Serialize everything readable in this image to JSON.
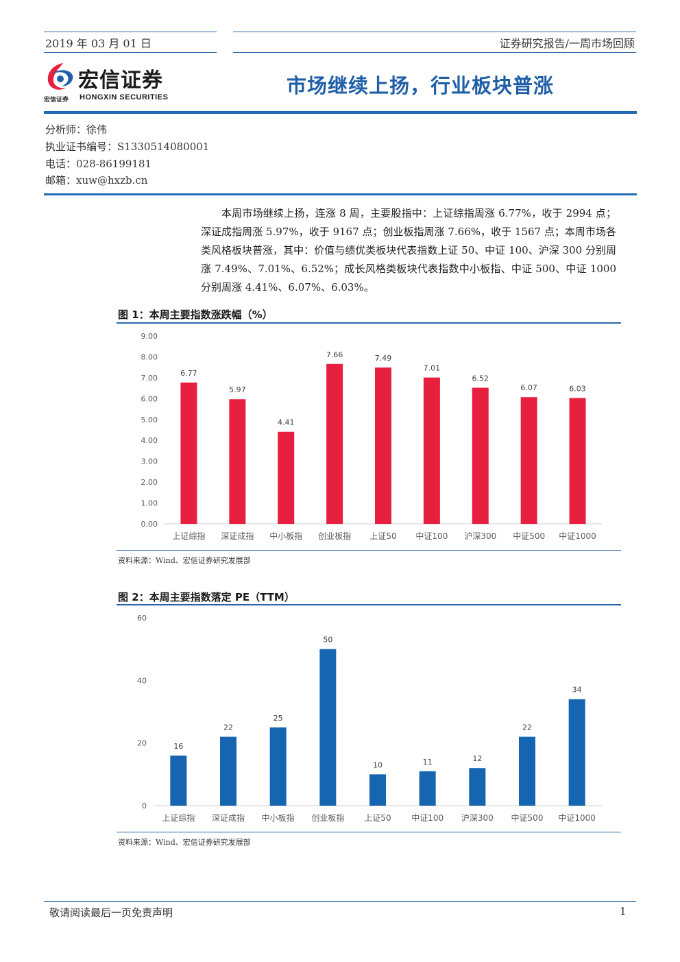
{
  "header": {
    "date": "2019 年 03 月 01 日",
    "report_type": "证券研究报告/一周市场回顾"
  },
  "logo": {
    "cn_name": "宏信证券",
    "small_cn": "宏信证券",
    "en_name": "HONGXIN SECURITIES"
  },
  "main_title": "市场继续上扬，行业板块普涨",
  "analyst": {
    "name_line": "分析师：徐伟",
    "cert_line": "执业证书编号：S1330514080001",
    "phone_line": "电话：028-86199181",
    "email_line": "邮箱：xuw@hxzb.cn"
  },
  "summary": "本周市场继续上扬，连涨 8 周，主要股指中：上证综指周涨 6.77%，收于 2994 点；深证成指周涨 5.97%，收于 9167 点；创业板指周涨 7.66%，收于 1567 点；本周市场各类风格板块普涨，其中：价值与绩优类板块代表指数上证 50、中证 100、沪深 300 分别周涨 7.49%、7.01%、6.52%；成长风格类板块代表指数中小板指、中证 500、中证 1000 分别周涨 4.41%、6.07%、6.03%。",
  "figure1": {
    "title": "图 1：本周主要指数涨跌幅（%）",
    "source": "资料来源：Wind、宏信证券研究发展部"
  },
  "figure2": {
    "title": "图 2：本周主要指数落定 PE（TTM）",
    "source": "资料来源：Wind、宏信证券研究发展部"
  },
  "chart_data": [
    {
      "type": "bar",
      "title": "图 1：本周主要指数涨跌幅（%）",
      "categories": [
        "上证综指",
        "深证成指",
        "中小板指",
        "创业板指",
        "上证50",
        "中证100",
        "沪深300",
        "中证500",
        "中证1000"
      ],
      "values": [
        6.77,
        5.97,
        4.41,
        7.66,
        7.49,
        7.01,
        6.52,
        6.07,
        6.03
      ],
      "data_labels": [
        "6.77",
        "5.97",
        "4.41",
        "7.66",
        "7.49",
        "7.01",
        "6.52",
        "6.07",
        "6.03"
      ],
      "yticks": [
        "0.00",
        "1.00",
        "2.00",
        "3.00",
        "4.00",
        "5.00",
        "6.00",
        "7.00",
        "8.00",
        "9.00"
      ],
      "ylim": [
        0,
        9
      ],
      "color": "#e8203f",
      "grid": false,
      "legend": "none"
    },
    {
      "type": "bar",
      "title": "图 2：本周主要指数落定 PE（TTM）",
      "categories": [
        "上证综指",
        "深证成指",
        "中小板指",
        "创业板指",
        "上证50",
        "中证100",
        "沪深300",
        "中证500",
        "中证1000"
      ],
      "values": [
        16,
        22,
        25,
        50,
        10,
        11,
        12,
        22,
        34
      ],
      "data_labels": [
        "16",
        "22",
        "25",
        "50",
        "10",
        "11",
        "12",
        "22",
        "34"
      ],
      "yticks": [
        "0",
        "20",
        "40",
        "60"
      ],
      "ylim": [
        0,
        60
      ],
      "color": "#1565b0",
      "grid": false,
      "legend": "none"
    }
  ],
  "footer": {
    "disclaimer": "敬请阅读最后一页免责声明",
    "page_number": "1"
  }
}
